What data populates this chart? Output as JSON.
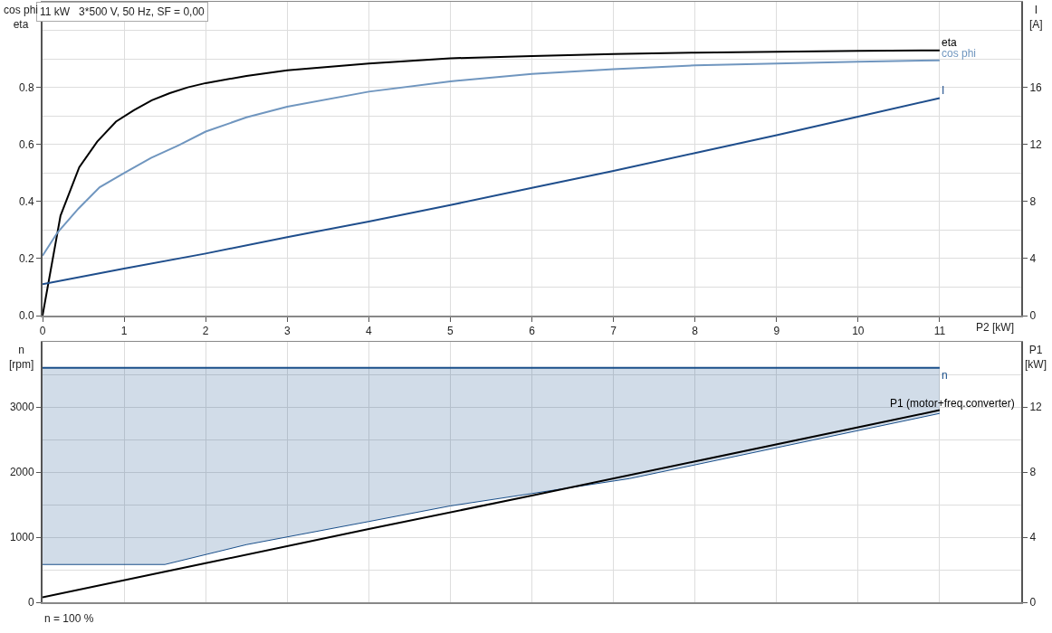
{
  "chart_data": [
    {
      "type": "line",
      "title": "11 kW   3*500 V, 50 Hz, SF = 0,00",
      "xlabel": "P2 [kW]",
      "ylabel": "cos phi\neta",
      "y2label": "I\n[A]",
      "xlim": [
        0,
        12
      ],
      "xticks": [
        0,
        1,
        2,
        3,
        4,
        5,
        6,
        7,
        8,
        9,
        10,
        11
      ],
      "ylim": [
        0,
        1.1
      ],
      "yticks": [
        {
          "value": 0,
          "label": "0.0"
        },
        {
          "value": 0.1,
          "label": null
        },
        {
          "value": 0.2,
          "label": "0.2"
        },
        {
          "value": 0.3,
          "label": null
        },
        {
          "value": 0.4,
          "label": "0.4"
        },
        {
          "value": 0.5,
          "label": null
        },
        {
          "value": 0.6,
          "label": "0.6"
        },
        {
          "value": 0.7,
          "label": null
        },
        {
          "value": 0.8,
          "label": "0.8"
        },
        {
          "value": 0.9,
          "label": null
        },
        {
          "value": 1.0,
          "label": null
        }
      ],
      "y2lim": [
        0,
        22
      ],
      "y2ticks": [
        0,
        4,
        8,
        12,
        16
      ],
      "grid": true,
      "series": [
        {
          "name": "eta",
          "color": "#000000",
          "x": [
            0,
            0.22,
            0.45,
            0.67,
            0.9,
            1.12,
            1.34,
            1.56,
            1.78,
            2,
            2.5,
            3,
            4,
            5,
            6,
            7,
            8,
            9,
            10,
            11
          ],
          "values": [
            0,
            0.35,
            0.52,
            0.61,
            0.68,
            0.72,
            0.755,
            0.78,
            0.8,
            0.815,
            0.84,
            0.86,
            0.884,
            0.902,
            0.91,
            0.917,
            0.922,
            0.925,
            0.928,
            0.93
          ]
        },
        {
          "name": "cos phi",
          "color": "#7096bf",
          "x": [
            0,
            0.18,
            0.44,
            0.7,
            1,
            1.33,
            1.67,
            2,
            2.5,
            3,
            4,
            5,
            6,
            7,
            8,
            9,
            10,
            11
          ],
          "values": [
            0.21,
            0.29,
            0.375,
            0.45,
            0.5,
            0.553,
            0.597,
            0.645,
            0.695,
            0.732,
            0.785,
            0.821,
            0.847,
            0.864,
            0.877,
            0.884,
            0.89,
            0.895
          ]
        },
        {
          "name": "I",
          "color": "#1f4e8c",
          "axis": "y2",
          "x": [
            0,
            1,
            2,
            3,
            4,
            5,
            6,
            7,
            8,
            9,
            10,
            11
          ],
          "values": [
            2.2,
            3.3,
            4.35,
            5.5,
            6.6,
            7.75,
            8.95,
            10.15,
            11.4,
            12.65,
            13.95,
            15.25
          ]
        }
      ]
    },
    {
      "type": "line",
      "ylabel": "n\n[rpm]",
      "y2label": "P1\n[kW]",
      "xlim": [
        0,
        12
      ],
      "xticks": [
        0,
        1,
        2,
        3,
        4,
        5,
        6,
        7,
        8,
        9,
        10,
        11
      ],
      "tick_labels": "y",
      "ylim": [
        0,
        4000
      ],
      "yticks": [
        0,
        {
          "value": 500,
          "label": null
        },
        1000,
        {
          "value": 1500,
          "label": null
        },
        2000,
        {
          "value": 2500,
          "label": null
        },
        3000,
        {
          "value": 3500,
          "label": null
        }
      ],
      "y2lim": [
        0,
        16
      ],
      "y2ticks": [
        0,
        4,
        8,
        12
      ],
      "grid": true,
      "annotations": [
        "n = 100 %"
      ],
      "series": [
        {
          "name": "n",
          "color": "#1a4f8a",
          "x": [
            0,
            1.5,
            2.5,
            4,
            5,
            6,
            7.2,
            11
          ],
          "values": [
            3600,
            3600,
            3600,
            3600,
            3600,
            3600,
            3600,
            3600
          ],
          "lower": [
            580,
            580,
            885,
            1240,
            1480,
            1670,
            1900,
            2900
          ],
          "upper": [
            3600,
            3600,
            3600,
            3600,
            3600,
            3600,
            3600,
            3600
          ]
        },
        {
          "name": "P1 (motor+freq.converter)",
          "color": "#000000",
          "axis": "y2",
          "x": [
            0,
            2,
            4,
            6,
            8,
            10,
            11
          ],
          "values": [
            0.3,
            2.4,
            4.5,
            6.55,
            8.65,
            10.75,
            11.8
          ]
        }
      ]
    }
  ]
}
